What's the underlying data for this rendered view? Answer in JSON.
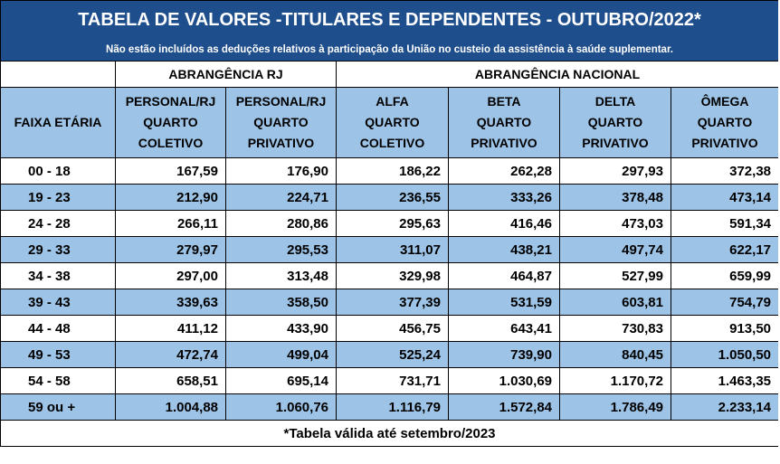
{
  "header": {
    "title": "TABELA DE VALORES -TITULARES E DEPENDENTES - OUTUBRO/2022*",
    "subtitle": "Não estão incluídos as deduções relativos à participação da União no custeio da assistência à saúde suplementar."
  },
  "table": {
    "groups": [
      {
        "label": "ABRANGÊNCIA RJ",
        "span": 2
      },
      {
        "label": "ABRANGÊNCIA NACIONAL",
        "span": 4
      }
    ],
    "first_column": "FAIXA ETÁRIA",
    "columns": [
      [
        "PERSONAL/RJ",
        "QUARTO",
        "COLETIVO"
      ],
      [
        "PERSONAL/RJ",
        "QUARTO",
        "PRIVATIVO"
      ],
      [
        "ALFA",
        "QUARTO",
        "COLETIVO"
      ],
      [
        "BETA",
        "QUARTO",
        "PRIVATIVO"
      ],
      [
        "DELTA",
        "QUARTO",
        "PRIVATIVO"
      ],
      [
        "ÔMEGA",
        "QUARTO",
        "PRIVATIVO"
      ]
    ],
    "rows": [
      [
        "00 - 18",
        "167,59",
        "176,90",
        "186,22",
        "262,28",
        "297,93",
        "372,38"
      ],
      [
        "19 - 23",
        "212,90",
        "224,71",
        "236,55",
        "333,26",
        "378,48",
        "473,14"
      ],
      [
        "24 - 28",
        "266,11",
        "280,86",
        "295,63",
        "416,46",
        "473,03",
        "591,34"
      ],
      [
        "29 - 33",
        "279,97",
        "295,53",
        "311,07",
        "438,21",
        "497,74",
        "622,17"
      ],
      [
        "34 - 38",
        "297,00",
        "313,48",
        "329,98",
        "464,87",
        "527,99",
        "659,99"
      ],
      [
        "39 - 43",
        "339,63",
        "358,50",
        "377,39",
        "531,59",
        "603,81",
        "754,79"
      ],
      [
        "44 - 48",
        "411,12",
        "433,90",
        "456,75",
        "643,41",
        "730,83",
        "913,50"
      ],
      [
        "49 - 53",
        "472,74",
        "499,04",
        "525,24",
        "739,90",
        "840,45",
        "1.050,50"
      ],
      [
        "54 - 58",
        "658,51",
        "695,14",
        "731,71",
        "1.030,69",
        "1.170,72",
        "1.463,35"
      ],
      [
        "59 ou +",
        "1.004,88",
        "1.060,76",
        "1.116,79",
        "1.572,84",
        "1.786,49",
        "2.233,14"
      ]
    ]
  },
  "footer": {
    "note": "*Tabela válida até setembro/2023"
  }
}
